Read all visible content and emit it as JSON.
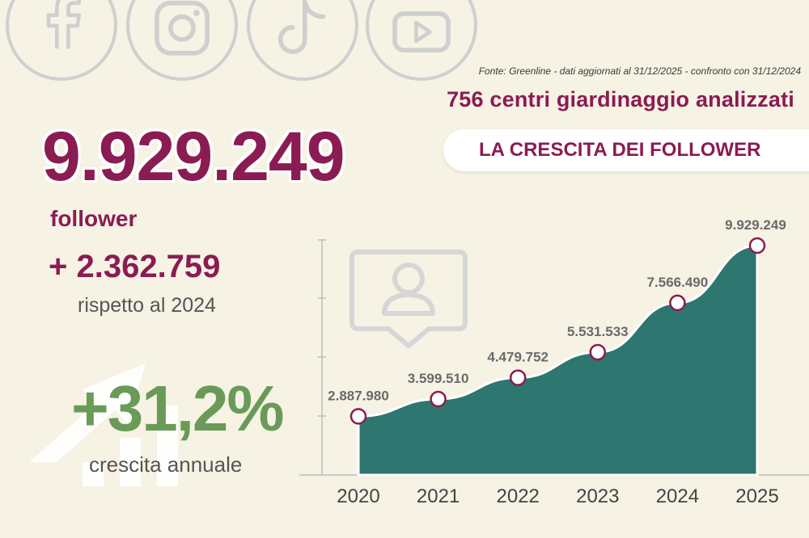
{
  "header": {
    "social_icons": [
      "facebook-icon",
      "instagram-icon",
      "tiktok-icon",
      "youtube-icon"
    ],
    "source_note": "Fonte: Greenline - dati aggiornati al 31/12/2025 - confronto con 31/12/2024",
    "subtitle": "756 centri giardinaggio analizzati",
    "section_title": "LA CRESCITA DEI FOLLOWER"
  },
  "kpi": {
    "total": "9.929.249",
    "total_label": "follower",
    "increase": "+ 2.362.759",
    "increase_caption": "rispetto al 2024",
    "growth": "+31,2%",
    "growth_caption": "crescita annuale"
  },
  "colors": {
    "brand": "#8a1c52",
    "area": "#2e7670",
    "growth": "#6a9a58",
    "background": "#f6f2e4"
  },
  "chart_data": {
    "type": "area",
    "x": [
      "2020",
      "2021",
      "2022",
      "2023",
      "2024",
      "2025"
    ],
    "values": [
      2887980,
      3599510,
      4479752,
      5531533,
      7566490,
      9929249
    ],
    "value_labels": [
      "2.887.980",
      "3.599.510",
      "4.479.752",
      "5.531.533",
      "7.566.490",
      "9.929.249"
    ],
    "ylim": [
      0,
      11000000
    ],
    "grid": false,
    "title": "",
    "xlabel": "",
    "ylabel": ""
  }
}
